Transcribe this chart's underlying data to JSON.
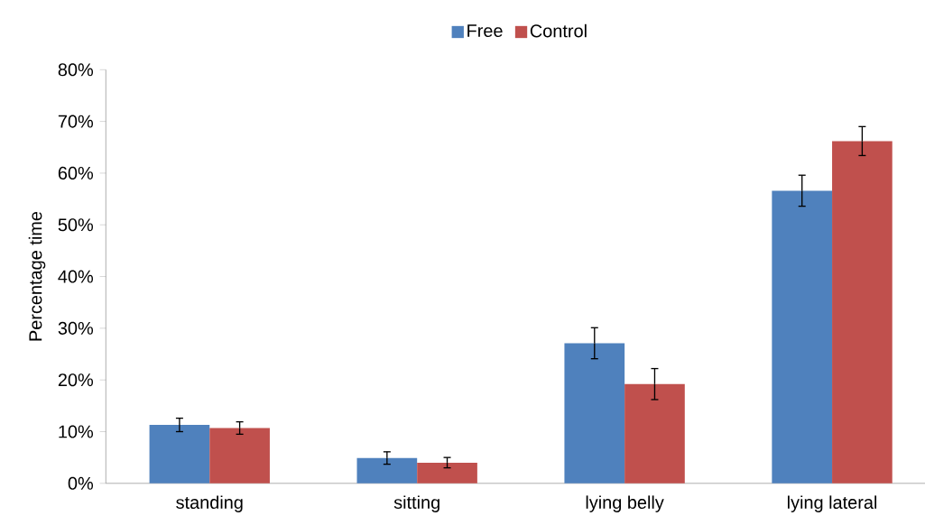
{
  "chart_data": {
    "type": "bar",
    "ylabel": "Percentage time",
    "categories": [
      "standing",
      "sitting",
      "lying belly",
      "lying lateral"
    ],
    "series": [
      {
        "name": "Free",
        "color": "#4f81bd",
        "values": [
          11.3,
          4.9,
          27.1,
          56.6
        ],
        "errors": [
          1.3,
          1.2,
          3.0,
          3.0
        ]
      },
      {
        "name": "Control",
        "color": "#c0504d",
        "values": [
          10.7,
          4.0,
          19.2,
          66.2
        ],
        "errors": [
          1.2,
          1.0,
          3.0,
          2.8
        ]
      }
    ],
    "ylim": [
      0,
      80
    ],
    "yticks": [
      {
        "value": 0,
        "label": "0%"
      },
      {
        "value": 10,
        "label": "10%"
      },
      {
        "value": 20,
        "label": "20%"
      },
      {
        "value": 30,
        "label": "30%"
      },
      {
        "value": 40,
        "label": "40%"
      },
      {
        "value": 50,
        "label": "50%"
      },
      {
        "value": 60,
        "label": "60%"
      },
      {
        "value": 70,
        "label": "70%"
      },
      {
        "value": 80,
        "label": "80%"
      }
    ],
    "grid": false,
    "legend": "top"
  }
}
